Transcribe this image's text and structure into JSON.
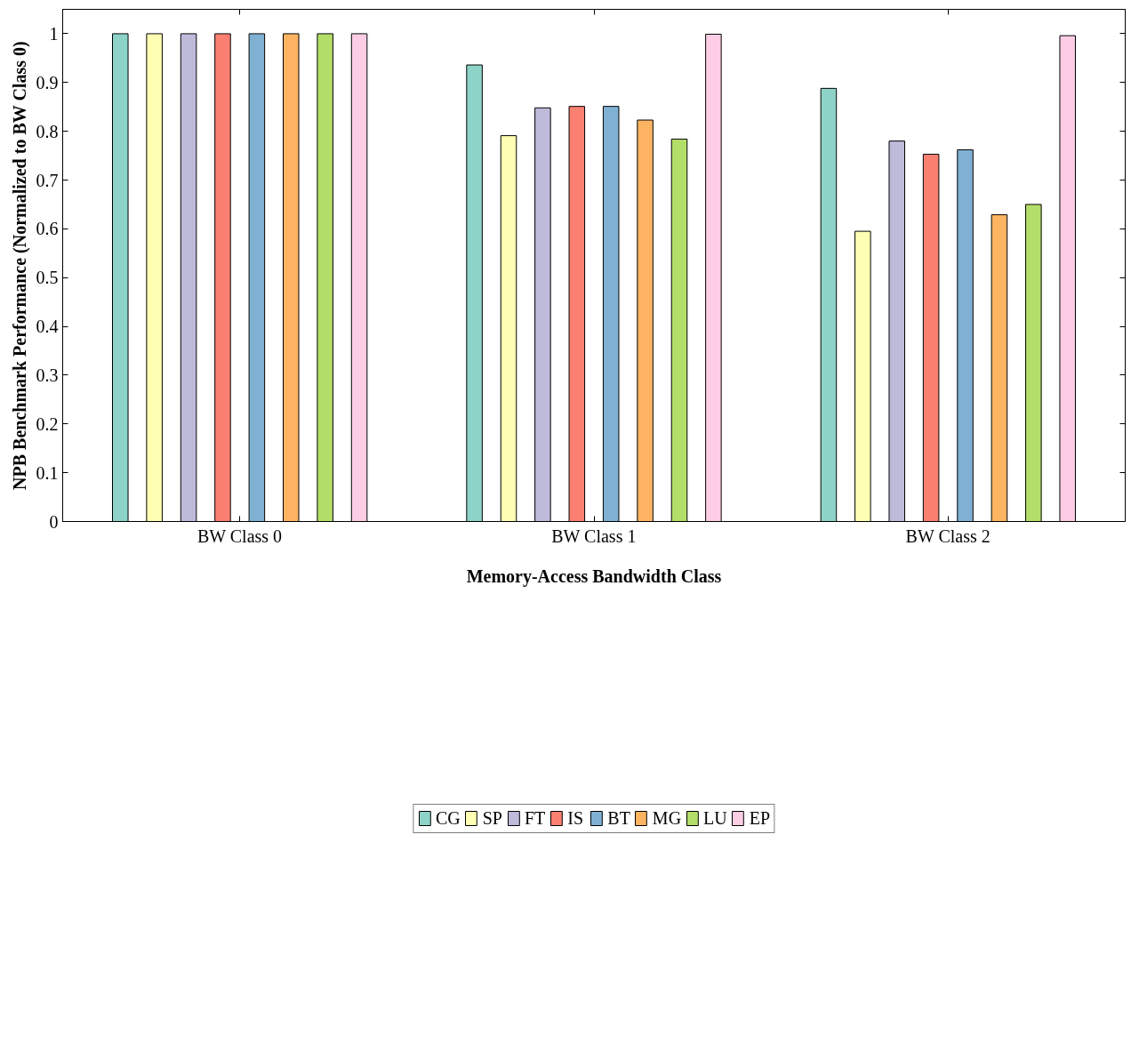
{
  "chart_data": {
    "type": "bar",
    "xlabel": "Memory-Access Bandwidth Class",
    "ylabel": "NPB Benchmark Performance (Normalized to BW Class 0)",
    "categories": [
      "BW Class 0",
      "BW Class 1",
      "BW Class 2"
    ],
    "series": [
      {
        "name": "CG",
        "color": "#8dd3c7",
        "values": [
          1,
          0.936,
          0.888
        ]
      },
      {
        "name": "SP",
        "color": "#ffffb3",
        "values": [
          1,
          0.791,
          0.595
        ]
      },
      {
        "name": "FT",
        "color": "#bebada",
        "values": [
          1,
          0.848,
          0.78
        ]
      },
      {
        "name": "IS",
        "color": "#fb8072",
        "values": [
          1,
          0.851,
          0.753
        ]
      },
      {
        "name": "BT",
        "color": "#80b1d3",
        "values": [
          1,
          0.851,
          0.762
        ]
      },
      {
        "name": "MG",
        "color": "#fdb462",
        "values": [
          1,
          0.823,
          0.629
        ]
      },
      {
        "name": "LU",
        "color": "#b3de69",
        "values": [
          1,
          0.784,
          0.65
        ]
      },
      {
        "name": "EP",
        "color": "#fccde5",
        "values": [
          1,
          0.999,
          0.996
        ]
      }
    ],
    "ylim": [
      0,
      1.05
    ],
    "yticks": [
      0,
      0.1,
      0.2,
      0.3,
      0.4,
      0.5,
      0.6,
      0.7,
      0.8,
      0.9,
      1
    ],
    "grid": false,
    "legend": "bottom"
  }
}
